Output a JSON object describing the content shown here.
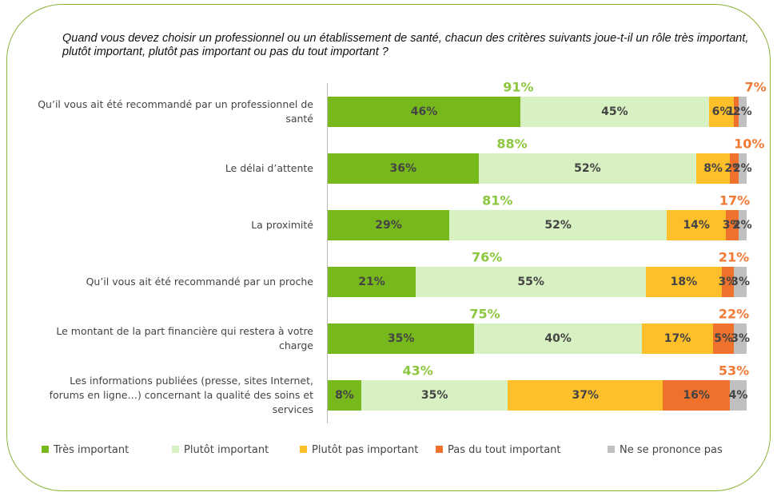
{
  "chart_data": {
    "type": "stacked-bar-horizontal",
    "title": "Quand vous devez choisir un professionnel ou un établissement de santé, chacun des critères suivants joue-t-il un rôle très important, plutôt important, plutôt pas important ou pas du tout important ?",
    "categories": [
      "Qu’il vous ait été recommandé par un professionnel de santé",
      "Le délai d’attente",
      "La proximité",
      "Qu’il vous ait été recommandé par un proche",
      "Le montant de la part financière qui restera à votre charge",
      "Les informations publiées (presse, sites Internet, forums en ligne…) concernant la qualité des soins et services"
    ],
    "xlim": [
      0,
      100
    ],
    "series": [
      {
        "name": "Très important",
        "color": "#77b81c",
        "values": [
          46,
          36,
          29,
          21,
          35,
          8
        ],
        "value_labels": [
          "46%",
          "36%",
          "29%",
          "21%",
          "35%",
          "8%"
        ]
      },
      {
        "name": "Plutôt important",
        "color": "#d8f1c2",
        "values": [
          45,
          52,
          52,
          55,
          40,
          35
        ],
        "value_labels": [
          "45%",
          "52%",
          "52%",
          "55%",
          "40%",
          "35%"
        ]
      },
      {
        "name": "Plutôt pas important",
        "color": "#fdc02a",
        "values": [
          6,
          8,
          14,
          18,
          17,
          37
        ],
        "value_labels": [
          "6%",
          "8%",
          "14%",
          "18%",
          "17%",
          "37%"
        ]
      },
      {
        "name": "Pas du tout important",
        "color": "#f0712c",
        "values": [
          1,
          2,
          3,
          3,
          5,
          16
        ],
        "value_labels": [
          "1%",
          "2%",
          "3%",
          "3%",
          "5%",
          "16%"
        ]
      },
      {
        "name": "Ne se prononce pas",
        "color": "#bfbfbf",
        "values": [
          2,
          2,
          2,
          3,
          3,
          4
        ],
        "value_labels": [
          "2%",
          "2%",
          "2%",
          "3%",
          "3%",
          "4%"
        ]
      }
    ],
    "totals": {
      "important": {
        "color": "#8dc63f",
        "values": [
          91,
          88,
          81,
          76,
          75,
          43
        ],
        "labels": [
          "91%",
          "88%",
          "81%",
          "76%",
          "75%",
          "43%"
        ]
      },
      "not_important": {
        "color": "#f07a35",
        "values": [
          7,
          10,
          17,
          21,
          22,
          53
        ],
        "labels": [
          "7%",
          "10%",
          "17%",
          "21%",
          "22%",
          "53%"
        ]
      }
    }
  }
}
